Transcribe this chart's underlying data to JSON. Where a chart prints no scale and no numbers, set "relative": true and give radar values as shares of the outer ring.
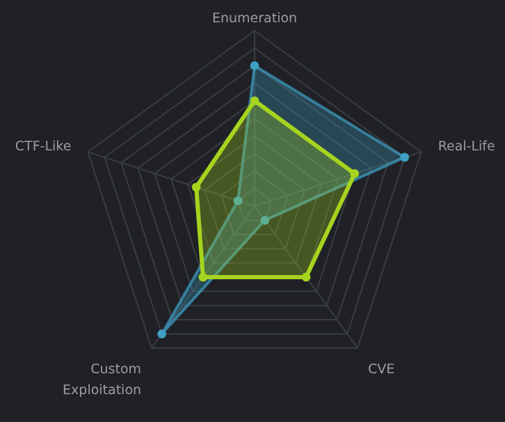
{
  "chart_data": {
    "type": "radar",
    "categories": [
      "Enumeration",
      "Real-Life",
      "CVE",
      "Custom Exploitation",
      "CTF-Like"
    ],
    "relative": true,
    "grid": true,
    "marker": "circle",
    "series": [
      {
        "color": "#3f9fc4",
        "values": [
          0.8,
          0.9,
          0.1,
          0.9,
          0.1
        ]
      },
      {
        "color": "#a6d41e",
        "values": [
          0.6,
          0.6,
          0.5,
          0.5,
          0.35
        ]
      }
    ]
  }
}
